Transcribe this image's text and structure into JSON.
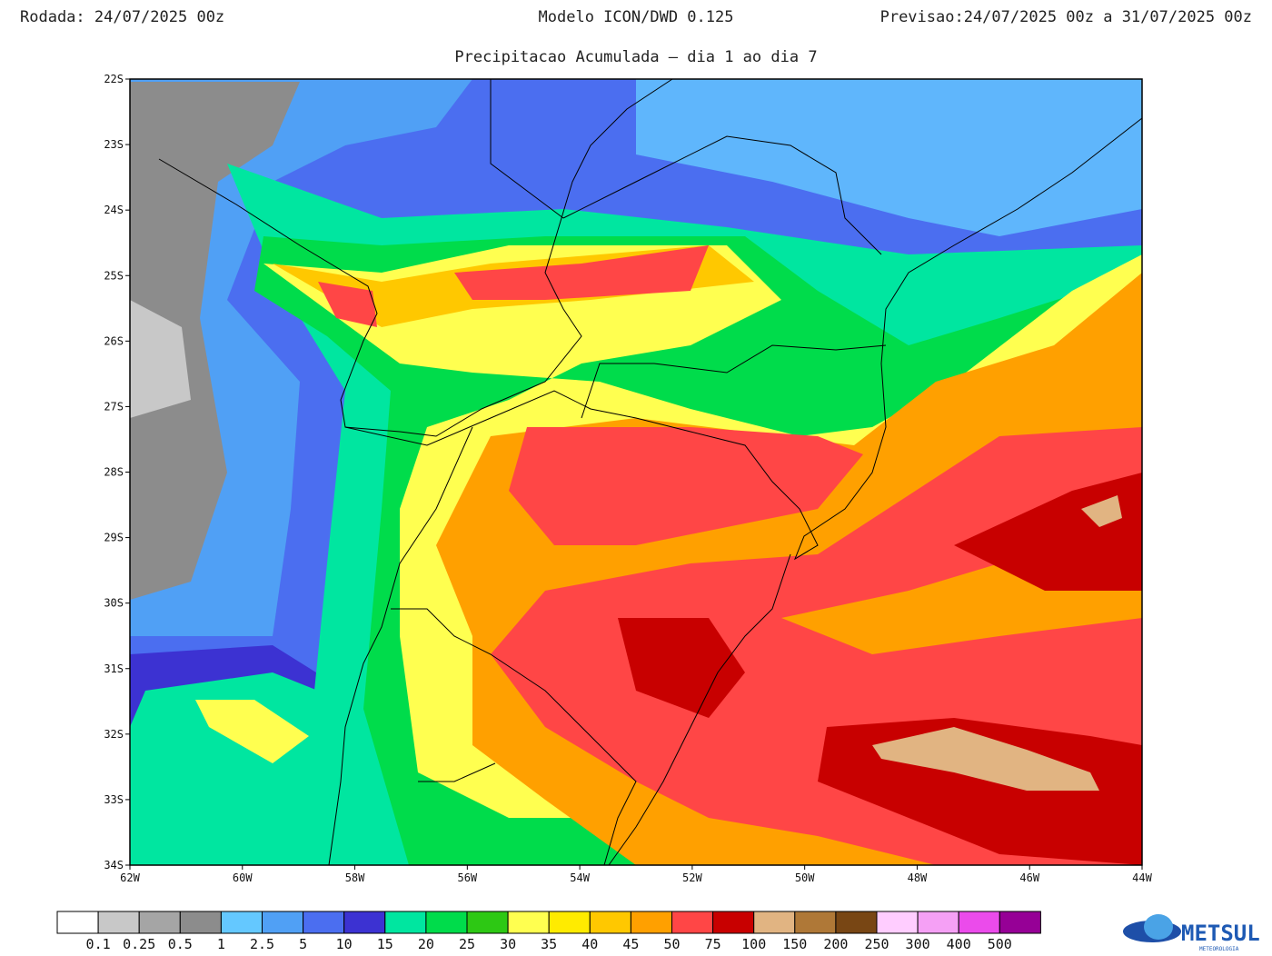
{
  "header": {
    "run": "Rodada: 24/07/2025 00z",
    "model": "Modelo ICON/DWD 0.125",
    "forecast": "Previsao:24/07/2025 00z a 31/07/2025 00z",
    "subtitle": "Precipitacao Acumulada – dia 1 ao dia 7"
  },
  "map": {
    "lat_labels": [
      "22S",
      "23S",
      "24S",
      "25S",
      "26S",
      "27S",
      "28S",
      "29S",
      "30S",
      "31S",
      "32S",
      "33S",
      "34S"
    ],
    "lon_labels": [
      "62W",
      "60W",
      "58W",
      "56W",
      "54W",
      "52W",
      "50W",
      "48W",
      "46W",
      "44W"
    ]
  },
  "colorbar": {
    "colors": [
      "#ffffff",
      "#c8c8c8",
      "#a5a5a5",
      "#8c8c8c",
      "#64c8ff",
      "#50a0f5",
      "#4b6ef0",
      "#3c32d2",
      "#00e6a0",
      "#00dc4b",
      "#2dc814",
      "#ffff50",
      "#ffeb00",
      "#ffc800",
      "#ffa000",
      "#ff4646",
      "#c80000",
      "#e1b482",
      "#af7837",
      "#784614",
      "#ffcdff",
      "#f5a0f5",
      "#eb4beb",
      "#960096"
    ],
    "labels": [
      "0.1",
      "0.25",
      "0.5",
      "1",
      "2.5",
      "5",
      "10",
      "15",
      "20",
      "25",
      "30",
      "35",
      "40",
      "45",
      "50",
      "75",
      "100",
      "150",
      "200",
      "250",
      "300",
      "400",
      "500"
    ]
  },
  "logo": {
    "name": "METSUL",
    "tagline": "METEOROLOGIA"
  }
}
